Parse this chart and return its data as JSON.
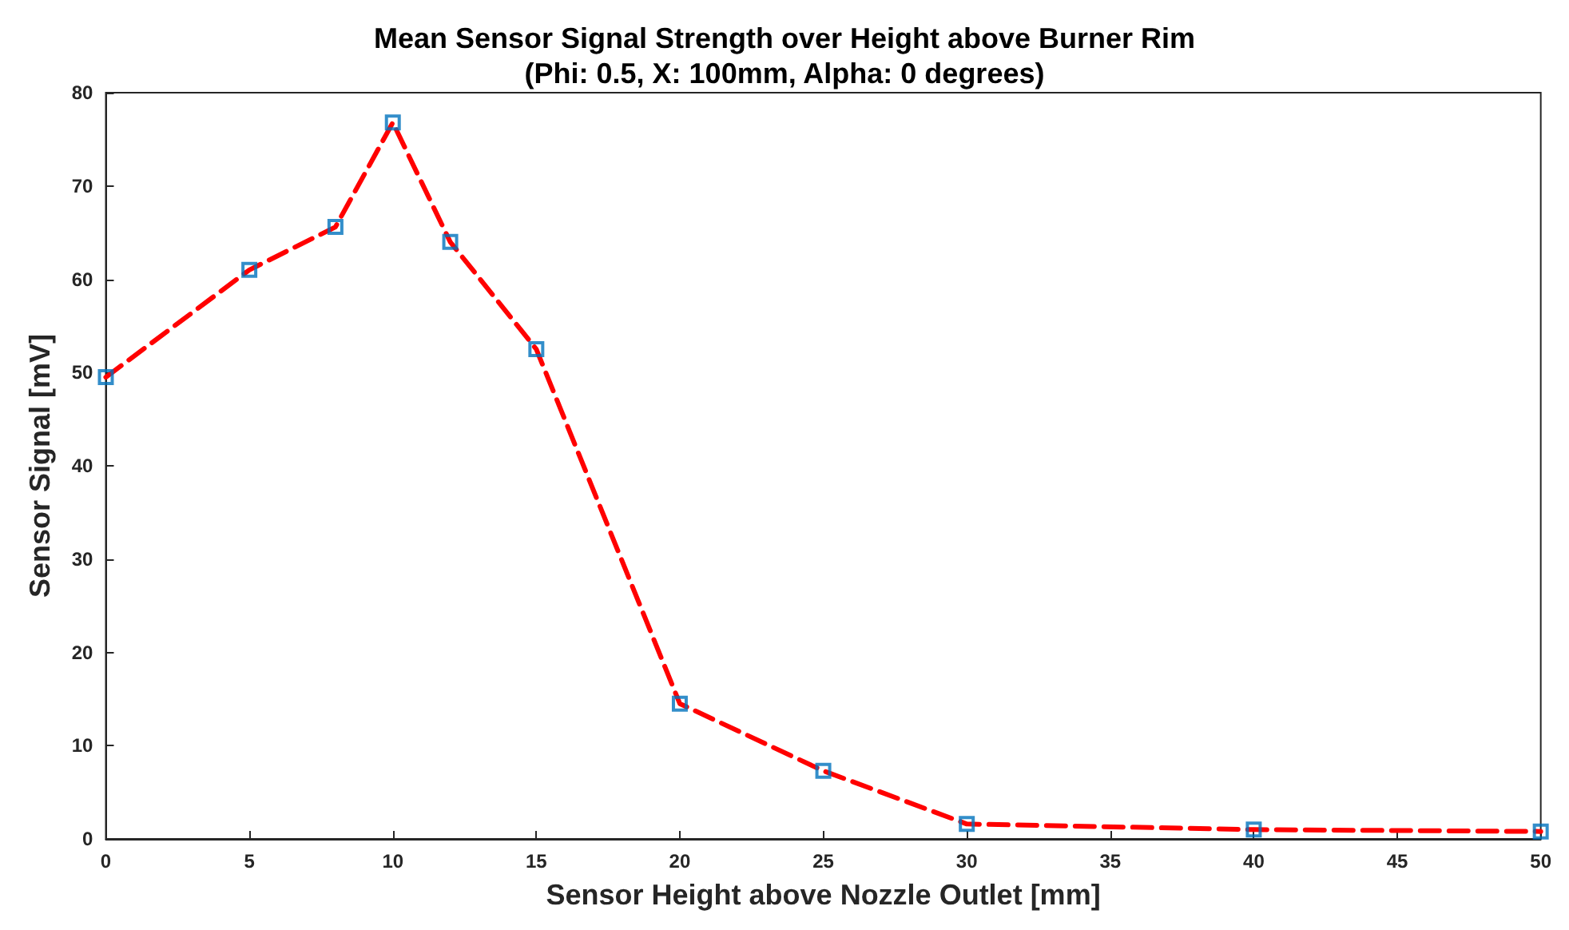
{
  "chart_data": {
    "type": "line",
    "title": "Mean Sensor Signal Strength over Height above Burner Rim",
    "subtitle": "(Phi: 0.5, X: 100mm, Alpha: 0 degrees)",
    "xlabel": "Sensor Height above Nozzle Outlet [mm]",
    "ylabel": "Sensor Signal [mV]",
    "x": [
      0,
      5,
      8,
      10,
      12,
      15,
      20,
      25,
      30,
      40,
      50
    ],
    "series": [
      {
        "color": "#ff0000",
        "line_style": "dashed",
        "marker": "none",
        "values": [
          49.5,
          61,
          65.6,
          76.8,
          64,
          52.5,
          14.5,
          7.3,
          1.6,
          1.0,
          0.8
        ]
      },
      {
        "type": "scatter",
        "color": "#0072bd",
        "marker": "square",
        "values": [
          49.5,
          61,
          65.6,
          76.8,
          64,
          52.5,
          14.5,
          7.3,
          1.6,
          1.0,
          0.8
        ]
      }
    ],
    "xlim": [
      0,
      50
    ],
    "xticks": [
      0,
      5,
      10,
      15,
      20,
      25,
      30,
      35,
      40,
      45,
      50
    ],
    "ylim": [
      0,
      80
    ],
    "yticks": [
      0,
      10,
      20,
      30,
      40,
      50,
      60,
      70,
      80
    ],
    "grid": false
  }
}
